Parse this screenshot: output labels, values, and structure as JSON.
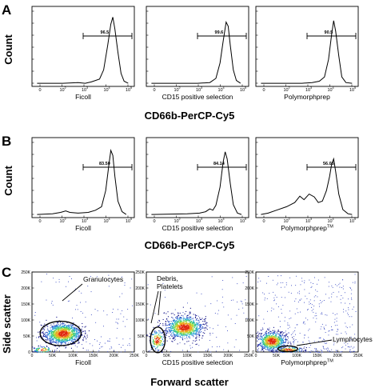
{
  "figure": {
    "panel_letters": [
      "A",
      "B",
      "C"
    ],
    "histogram_y_label": "Count",
    "histogram_x_label": "CD66b-PerCP-Cy5",
    "scatter_y_label": "Side scatter",
    "scatter_x_label": "Forward scatter"
  },
  "chart_data": [
    {
      "panel": "A",
      "type": "line",
      "xlabel": "CD66b-PerCP-Cy5",
      "ylabel": "Count",
      "x_axis": "log",
      "xlim": [
        0,
        100000
      ],
      "x_ticks": [
        "0",
        "10",
        "10",
        "10",
        "10"
      ],
      "x_ticks_exp": [
        "",
        "2",
        "3",
        "4",
        "5"
      ],
      "subplots": [
        {
          "label": "Ficoll",
          "label_sup": "",
          "gate_value": "96.5",
          "curve": [
            [
              0.05,
              1
            ],
            [
              0.3,
              1
            ],
            [
              0.45,
              2
            ],
            [
              0.52,
              1
            ],
            [
              0.58,
              3
            ],
            [
              0.66,
              7
            ],
            [
              0.7,
              20
            ],
            [
              0.74,
              55
            ],
            [
              0.77,
              85
            ],
            [
              0.79,
              95
            ],
            [
              0.81,
              78
            ],
            [
              0.84,
              45
            ],
            [
              0.87,
              15
            ],
            [
              0.9,
              4
            ],
            [
              0.94,
              1
            ]
          ]
        },
        {
          "label": "CD15 positive selection",
          "label_sup": "",
          "gate_value": "99.6",
          "curve": [
            [
              0.05,
              1
            ],
            [
              0.5,
              1
            ],
            [
              0.62,
              2
            ],
            [
              0.68,
              8
            ],
            [
              0.72,
              30
            ],
            [
              0.75,
              60
            ],
            [
              0.78,
              88
            ],
            [
              0.8,
              82
            ],
            [
              0.82,
              55
            ],
            [
              0.85,
              20
            ],
            [
              0.88,
              5
            ],
            [
              0.92,
              1
            ]
          ]
        },
        {
          "label": "Polymorphprep",
          "label_sup": "",
          "gate_value": "90.5",
          "curve": [
            [
              0.05,
              1
            ],
            [
              0.45,
              1
            ],
            [
              0.55,
              2
            ],
            [
              0.62,
              4
            ],
            [
              0.67,
              10
            ],
            [
              0.71,
              35
            ],
            [
              0.74,
              70
            ],
            [
              0.76,
              90
            ],
            [
              0.78,
              75
            ],
            [
              0.81,
              40
            ],
            [
              0.84,
              10
            ],
            [
              0.88,
              2
            ],
            [
              0.94,
              1
            ]
          ]
        }
      ]
    },
    {
      "panel": "B",
      "type": "line",
      "xlabel": "CD66b-PerCP-Cy5",
      "ylabel": "Count",
      "x_axis": "log",
      "xlim": [
        0,
        100000
      ],
      "x_ticks": [
        "0",
        "10",
        "10",
        "10",
        "10"
      ],
      "x_ticks_exp": [
        "",
        "2",
        "3",
        "4",
        "5"
      ],
      "subplots": [
        {
          "label": "Ficoll",
          "label_sup": "",
          "gate_value": "83.50",
          "curve": [
            [
              0.05,
              1
            ],
            [
              0.2,
              2
            ],
            [
              0.28,
              4
            ],
            [
              0.33,
              6
            ],
            [
              0.37,
              4
            ],
            [
              0.45,
              3
            ],
            [
              0.55,
              4
            ],
            [
              0.62,
              7
            ],
            [
              0.68,
              12
            ],
            [
              0.72,
              35
            ],
            [
              0.75,
              70
            ],
            [
              0.77,
              92
            ],
            [
              0.79,
              85
            ],
            [
              0.81,
              55
            ],
            [
              0.84,
              20
            ],
            [
              0.88,
              5
            ],
            [
              0.92,
              1
            ]
          ]
        },
        {
          "label": "CD15 positive selection",
          "label_sup": "",
          "gate_value": "84.14",
          "curve": [
            [
              0.05,
              1
            ],
            [
              0.4,
              2
            ],
            [
              0.52,
              3
            ],
            [
              0.58,
              5
            ],
            [
              0.62,
              9
            ],
            [
              0.65,
              7
            ],
            [
              0.68,
              14
            ],
            [
              0.72,
              40
            ],
            [
              0.75,
              75
            ],
            [
              0.77,
              90
            ],
            [
              0.79,
              80
            ],
            [
              0.82,
              45
            ],
            [
              0.85,
              15
            ],
            [
              0.89,
              3
            ],
            [
              0.93,
              1
            ]
          ]
        },
        {
          "label": "Polymorphprep",
          "label_sup": "TM",
          "gate_value": "56.05",
          "curve": [
            [
              0.05,
              1
            ],
            [
              0.12,
              3
            ],
            [
              0.2,
              7
            ],
            [
              0.3,
              12
            ],
            [
              0.38,
              18
            ],
            [
              0.43,
              27
            ],
            [
              0.47,
              22
            ],
            [
              0.52,
              30
            ],
            [
              0.57,
              26
            ],
            [
              0.61,
              18
            ],
            [
              0.65,
              20
            ],
            [
              0.69,
              35
            ],
            [
              0.72,
              55
            ],
            [
              0.74,
              72
            ],
            [
              0.76,
              80
            ],
            [
              0.78,
              62
            ],
            [
              0.81,
              30
            ],
            [
              0.85,
              8
            ],
            [
              0.9,
              2
            ],
            [
              0.94,
              1
            ]
          ]
        }
      ]
    },
    {
      "panel": "C",
      "type": "scatter",
      "xlabel": "Forward scatter",
      "ylabel": "Side scatter",
      "xlim": [
        0,
        250000
      ],
      "ylim": [
        0,
        250000
      ],
      "x_ticks": [
        "0",
        "50K",
        "100K",
        "150K",
        "200K",
        "250K"
      ],
      "y_ticks": [
        "0",
        "50K",
        "100K",
        "150K",
        "200K",
        "250K"
      ],
      "subplots": [
        {
          "label": "Ficoll",
          "label_sup": "",
          "clusters": [
            {
              "cx": 75000,
              "cy": 58000,
              "sx": 22000,
              "sy": 16000,
              "n": 1100
            },
            {
              "cx": 25000,
              "cy": 8000,
              "sx": 12000,
              "sy": 5000,
              "n": 90
            }
          ],
          "background_points": 140,
          "gates": [
            {
              "name": "Granulocytes",
              "label": "Granulocytes",
              "cx": 70000,
              "cy": 58000,
              "rx": 50000,
              "ry": 38000
            }
          ]
        },
        {
          "label": "CD15 positive selection",
          "label_sup": "",
          "clusters": [
            {
              "cx": 92000,
              "cy": 78000,
              "sx": 22000,
              "sy": 18000,
              "n": 1000
            },
            {
              "cx": 26000,
              "cy": 38000,
              "sx": 9000,
              "sy": 16000,
              "n": 170
            }
          ],
          "background_points": 90,
          "gates": [
            {
              "name": "Debris, Platelets",
              "label_lines": [
                "Debris,",
                "Platelets"
              ],
              "cx": 28000,
              "cy": 38000,
              "rx": 18000,
              "ry": 40000
            }
          ]
        },
        {
          "label": "Polymorphprep",
          "label_sup": "TM",
          "clusters": [
            {
              "cx": 38000,
              "cy": 35000,
              "sx": 17000,
              "sy": 15000,
              "n": 750
            },
            {
              "cx": 78000,
              "cy": 8000,
              "sx": 18000,
              "sy": 4500,
              "n": 130
            }
          ],
          "background_points": 420,
          "gates": [
            {
              "name": "Lymphocytes",
              "label": "Lymphocytes",
              "cx": 78000,
              "cy": 10000,
              "rx": 24000,
              "ry": 9000
            }
          ]
        }
      ]
    }
  ]
}
